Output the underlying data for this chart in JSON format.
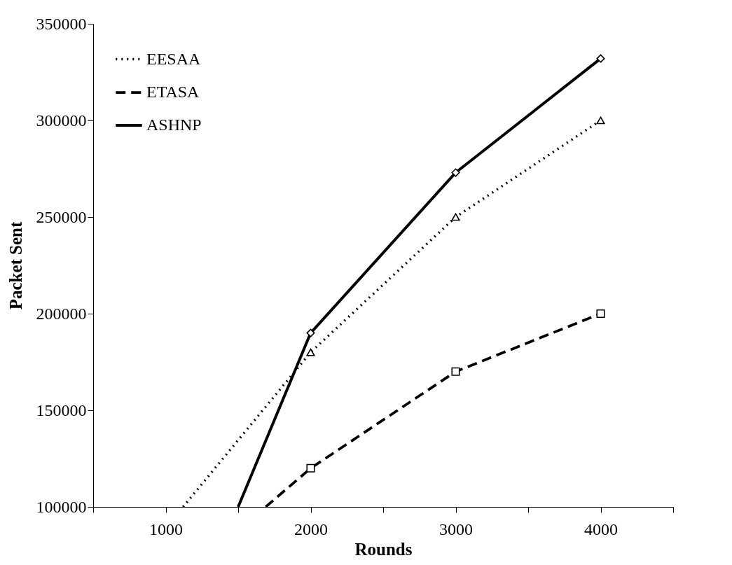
{
  "chart_data": {
    "type": "line",
    "xlabel": "Rounds",
    "ylabel": "Packet Sent",
    "xlim": [
      500,
      4500
    ],
    "xticks": [
      {
        "value": 500,
        "label": null
      },
      1000,
      {
        "value": 1500,
        "label": null
      },
      2000,
      {
        "value": 2500,
        "label": null
      },
      3000,
      {
        "value": 3500,
        "label": null
      },
      4000,
      {
        "value": 4500,
        "label": null
      }
    ],
    "ylim": [
      100000,
      350000
    ],
    "yticks": [
      100000,
      150000,
      200000,
      250000,
      300000,
      350000
    ],
    "grid": false,
    "legend": "top left",
    "series": [
      {
        "name": "EESAA",
        "color": "#000000",
        "line_style": "dotted",
        "marker": "triangle",
        "x": [
          1120,
          2000,
          3000,
          4000
        ],
        "values": [
          100000,
          180000,
          250000,
          300000
        ]
      },
      {
        "name": "ETASA",
        "color": "#000000",
        "line_style": "dashed",
        "marker": "square",
        "x": [
          1690,
          2000,
          3000,
          4000
        ],
        "values": [
          100000,
          120000,
          170000,
          200000
        ]
      },
      {
        "name": "ASHNP",
        "color": "#000000",
        "line_style": "solid",
        "marker": "diamond",
        "x": [
          1500,
          2000,
          3000,
          4000
        ],
        "values": [
          100000,
          190000,
          273000,
          332000
        ]
      }
    ]
  }
}
